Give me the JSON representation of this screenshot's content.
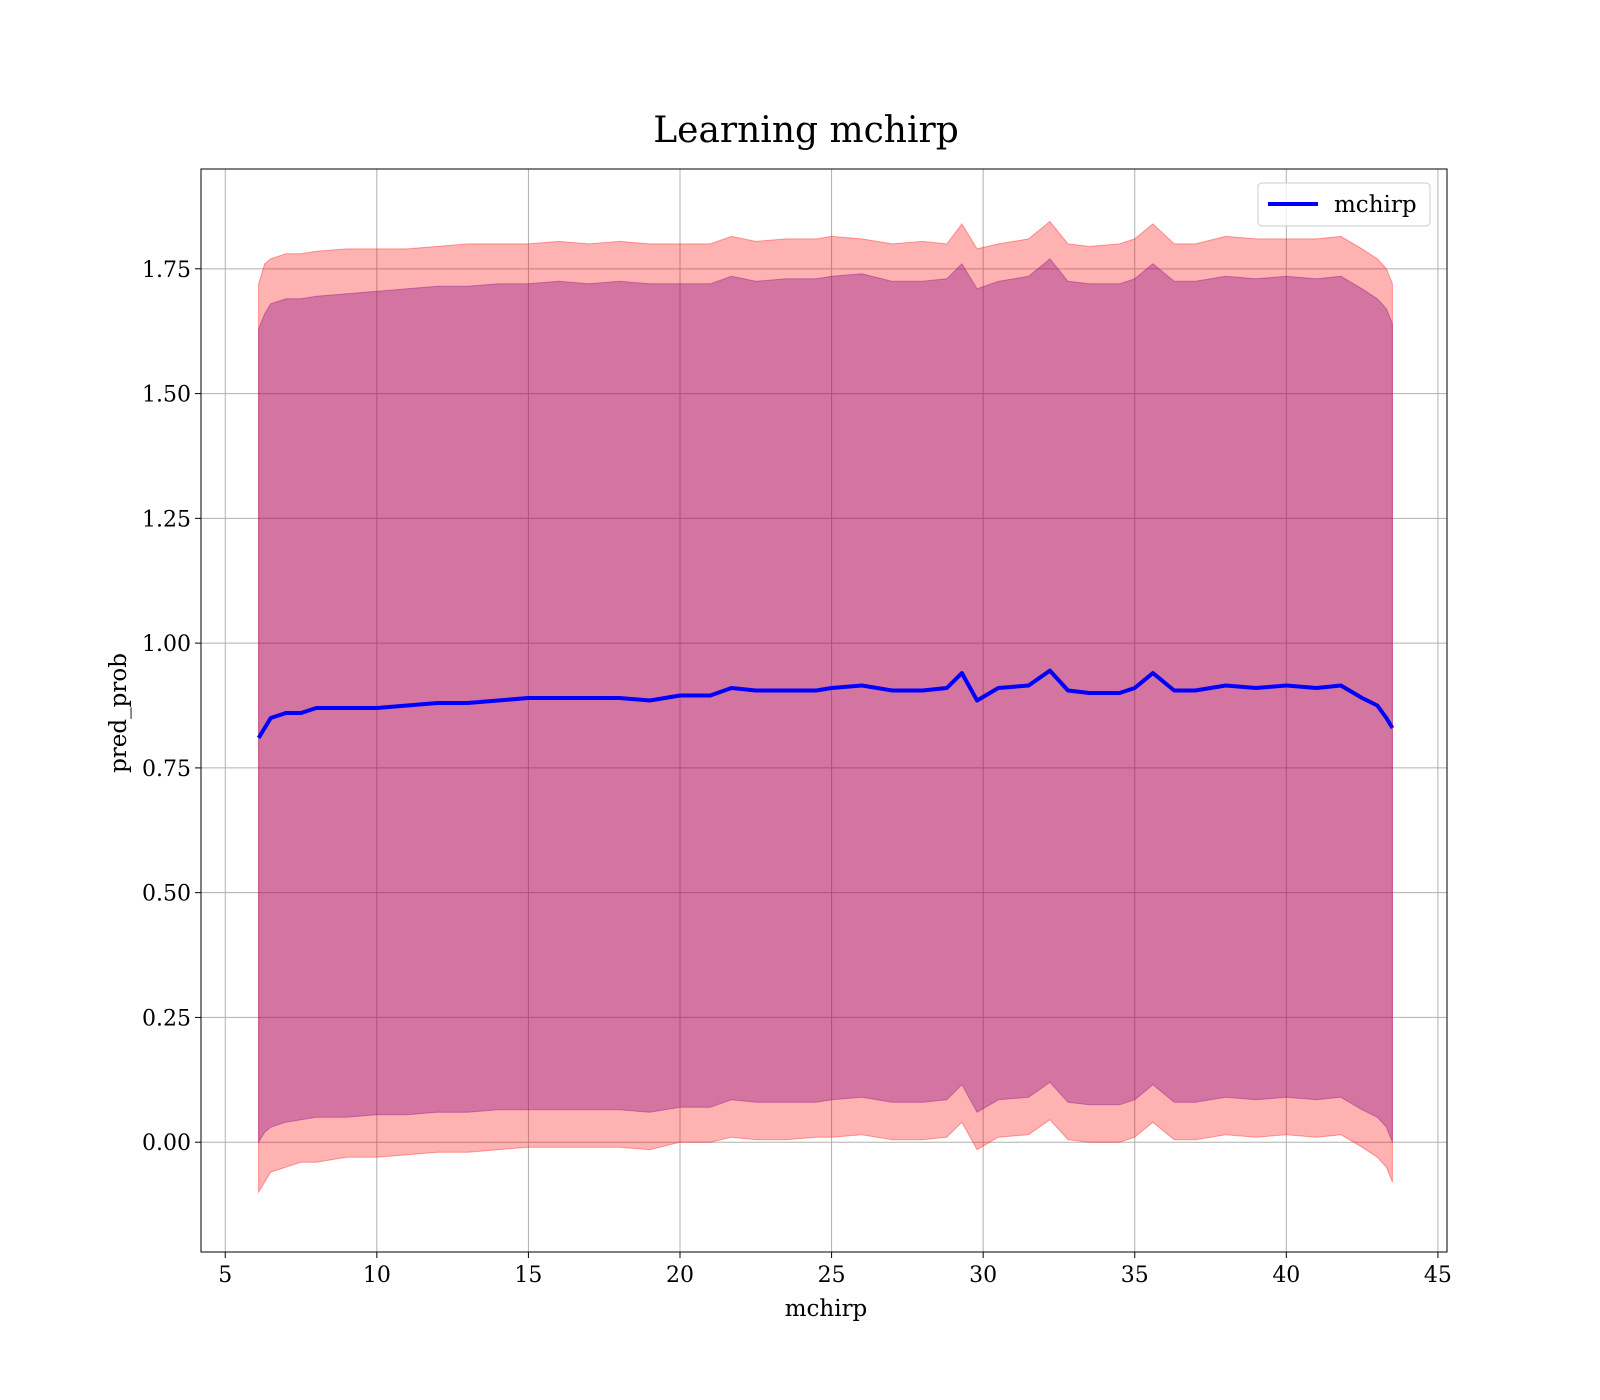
{
  "chart_data": {
    "type": "line",
    "title": "Learning mchirp",
    "xlabel": "mchirp",
    "ylabel": "pred_prob",
    "xlim": [
      4.2,
      45.3
    ],
    "ylim": [
      -0.22,
      1.95
    ],
    "x_ticks": [
      5,
      10,
      15,
      20,
      25,
      30,
      35,
      40,
      45
    ],
    "x_tick_labels": [
      "5",
      "10",
      "15",
      "20",
      "25",
      "30",
      "35",
      "40",
      "45"
    ],
    "y_ticks": [
      0.0,
      0.25,
      0.5,
      0.75,
      1.0,
      1.25,
      1.5,
      1.75
    ],
    "y_tick_labels": [
      "0.00",
      "0.25",
      "0.50",
      "0.75",
      "1.00",
      "1.25",
      "1.50",
      "1.75"
    ],
    "grid": true,
    "legend": {
      "position": "top-right",
      "entries": [
        "mchirp"
      ]
    },
    "colors": {
      "line": "#0000ff",
      "outer_band": "#ff0000",
      "inner_band": "#800080",
      "grid": "#b0b0b0"
    },
    "series": [
      {
        "name": "mchirp",
        "x": [
          6.1,
          6.3,
          6.5,
          7.0,
          7.5,
          8.0,
          9.0,
          10.0,
          11.0,
          12.0,
          13.0,
          14.0,
          15.0,
          16.0,
          17.0,
          18.0,
          19.0,
          20.0,
          21.0,
          21.7,
          22.5,
          23.5,
          24.5,
          25.0,
          26.0,
          27.0,
          28.0,
          28.8,
          29.3,
          29.8,
          30.5,
          31.5,
          32.2,
          32.8,
          33.5,
          34.5,
          35.0,
          35.6,
          36.3,
          37.0,
          38.0,
          39.0,
          40.0,
          41.0,
          41.8,
          42.5,
          43.0,
          43.3,
          43.5
        ],
        "values": [
          0.81,
          0.83,
          0.85,
          0.86,
          0.86,
          0.87,
          0.87,
          0.87,
          0.875,
          0.88,
          0.88,
          0.885,
          0.89,
          0.89,
          0.89,
          0.89,
          0.885,
          0.895,
          0.895,
          0.91,
          0.905,
          0.905,
          0.905,
          0.91,
          0.915,
          0.905,
          0.905,
          0.91,
          0.94,
          0.885,
          0.91,
          0.915,
          0.945,
          0.905,
          0.9,
          0.9,
          0.91,
          0.94,
          0.905,
          0.905,
          0.915,
          0.91,
          0.915,
          0.91,
          0.915,
          0.89,
          0.875,
          0.85,
          0.83
        ]
      }
    ],
    "bands": [
      {
        "name": "",
        "color": "#ff0000",
        "opacity": 0.3,
        "x": [
          6.1,
          6.3,
          6.5,
          7.0,
          7.5,
          8.0,
          9.0,
          10.0,
          11.0,
          12.0,
          13.0,
          14.0,
          15.0,
          16.0,
          17.0,
          18.0,
          19.0,
          20.0,
          21.0,
          21.7,
          22.5,
          23.5,
          24.5,
          25.0,
          26.0,
          27.0,
          28.0,
          28.8,
          29.3,
          29.8,
          30.5,
          31.5,
          32.2,
          32.8,
          33.5,
          34.5,
          35.0,
          35.6,
          36.3,
          37.0,
          38.0,
          39.0,
          40.0,
          41.0,
          41.8,
          42.5,
          43.0,
          43.3,
          43.5
        ],
        "upper": [
          1.72,
          1.76,
          1.77,
          1.78,
          1.78,
          1.785,
          1.79,
          1.79,
          1.79,
          1.795,
          1.8,
          1.8,
          1.8,
          1.805,
          1.8,
          1.805,
          1.8,
          1.8,
          1.8,
          1.815,
          1.805,
          1.81,
          1.81,
          1.815,
          1.81,
          1.8,
          1.805,
          1.8,
          1.84,
          1.79,
          1.8,
          1.81,
          1.845,
          1.8,
          1.795,
          1.8,
          1.81,
          1.84,
          1.8,
          1.8,
          1.815,
          1.81,
          1.81,
          1.81,
          1.815,
          1.79,
          1.77,
          1.75,
          1.72
        ],
        "lower": [
          -0.1,
          -0.08,
          -0.06,
          -0.05,
          -0.04,
          -0.04,
          -0.03,
          -0.03,
          -0.025,
          -0.02,
          -0.02,
          -0.015,
          -0.01,
          -0.01,
          -0.01,
          -0.01,
          -0.015,
          0.0,
          0.0,
          0.01,
          0.005,
          0.005,
          0.01,
          0.01,
          0.015,
          0.005,
          0.005,
          0.01,
          0.04,
          -0.015,
          0.01,
          0.015,
          0.045,
          0.005,
          0.0,
          0.0,
          0.01,
          0.04,
          0.005,
          0.005,
          0.015,
          0.01,
          0.015,
          0.01,
          0.015,
          -0.01,
          -0.03,
          -0.05,
          -0.08
        ]
      },
      {
        "name": "",
        "color": "#800080",
        "opacity": 0.35,
        "x": [
          6.1,
          6.3,
          6.5,
          7.0,
          7.5,
          8.0,
          9.0,
          10.0,
          11.0,
          12.0,
          13.0,
          14.0,
          15.0,
          16.0,
          17.0,
          18.0,
          19.0,
          20.0,
          21.0,
          21.7,
          22.5,
          23.5,
          24.5,
          25.0,
          26.0,
          27.0,
          28.0,
          28.8,
          29.3,
          29.8,
          30.5,
          31.5,
          32.2,
          32.8,
          33.5,
          34.5,
          35.0,
          35.6,
          36.3,
          37.0,
          38.0,
          39.0,
          40.0,
          41.0,
          41.8,
          42.5,
          43.0,
          43.3,
          43.5
        ],
        "upper": [
          1.63,
          1.66,
          1.68,
          1.69,
          1.69,
          1.695,
          1.7,
          1.705,
          1.71,
          1.715,
          1.715,
          1.72,
          1.72,
          1.725,
          1.72,
          1.725,
          1.72,
          1.72,
          1.72,
          1.735,
          1.725,
          1.73,
          1.73,
          1.735,
          1.74,
          1.725,
          1.725,
          1.73,
          1.76,
          1.71,
          1.725,
          1.735,
          1.77,
          1.725,
          1.72,
          1.72,
          1.73,
          1.76,
          1.725,
          1.725,
          1.735,
          1.73,
          1.735,
          1.73,
          1.735,
          1.71,
          1.69,
          1.67,
          1.64
        ],
        "lower": [
          0.0,
          0.02,
          0.03,
          0.04,
          0.045,
          0.05,
          0.05,
          0.055,
          0.055,
          0.06,
          0.06,
          0.065,
          0.065,
          0.065,
          0.065,
          0.065,
          0.06,
          0.07,
          0.07,
          0.085,
          0.08,
          0.08,
          0.08,
          0.085,
          0.09,
          0.08,
          0.08,
          0.085,
          0.115,
          0.06,
          0.085,
          0.09,
          0.12,
          0.08,
          0.075,
          0.075,
          0.085,
          0.115,
          0.08,
          0.08,
          0.09,
          0.085,
          0.09,
          0.085,
          0.09,
          0.065,
          0.05,
          0.03,
          0.0
        ]
      }
    ]
  }
}
